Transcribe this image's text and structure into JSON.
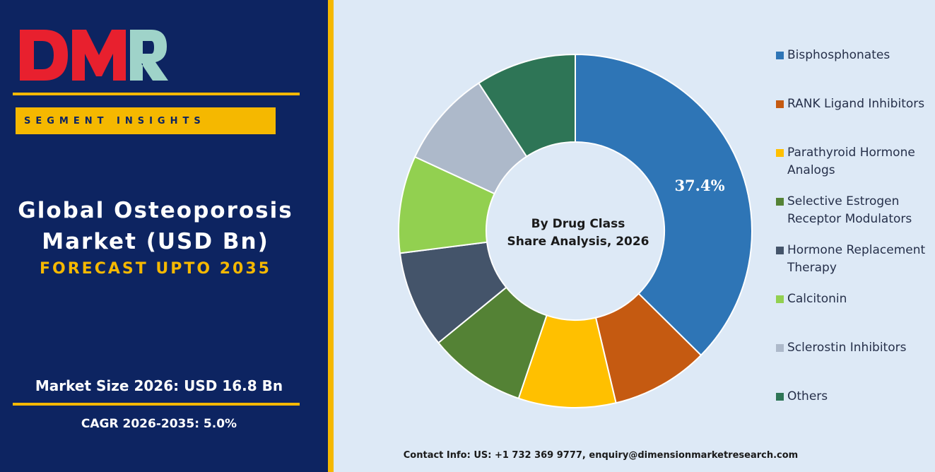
{
  "logo": {
    "text": "DMR",
    "colors": {
      "d_m": "#e8202e",
      "r": "#9fd3c9"
    }
  },
  "segment_banner": "SEGMENT INSIGHTS",
  "title_line1": "Global Osteoporosis",
  "title_line2": "Market (USD Bn)",
  "subtitle": "FORECAST UPTO 2035",
  "market_size": "Market Size 2026: USD 16.8 Bn",
  "cagr": "CAGR 2026-2035: 5.0%",
  "contact": "Contact Info: US: +1 732 369 9777, enquiry@dimensionmarketresearch.com",
  "colors": {
    "navy": "#0d2461",
    "gold": "#f5b800",
    "panel": "#dde9f6"
  },
  "chart_data": {
    "type": "pie",
    "variant": "donut",
    "center_label_line1": "By Drug Class",
    "center_label_line2": "Share Analysis, 2026",
    "categories": [
      "Bisphosphonates",
      "RANK Ligand Inhibitors",
      "Parathyroid Hormone Analogs",
      "Selective Estrogen Receptor Modulators",
      "Hormone Replacement Therapy",
      "Calcitonin",
      "Sclerostin Inhibitors",
      "Others"
    ],
    "values": [
      37.4,
      8.9,
      8.9,
      8.9,
      8.9,
      8.9,
      8.9,
      9.2
    ],
    "colors": [
      "#2e75b6",
      "#c55a11",
      "#ffc000",
      "#548235",
      "#44546a",
      "#92d050",
      "#adb9ca",
      "#2e7556"
    ],
    "data_labels": [
      {
        "index": 0,
        "text": "37.4%"
      }
    ],
    "legend_position": "right"
  }
}
